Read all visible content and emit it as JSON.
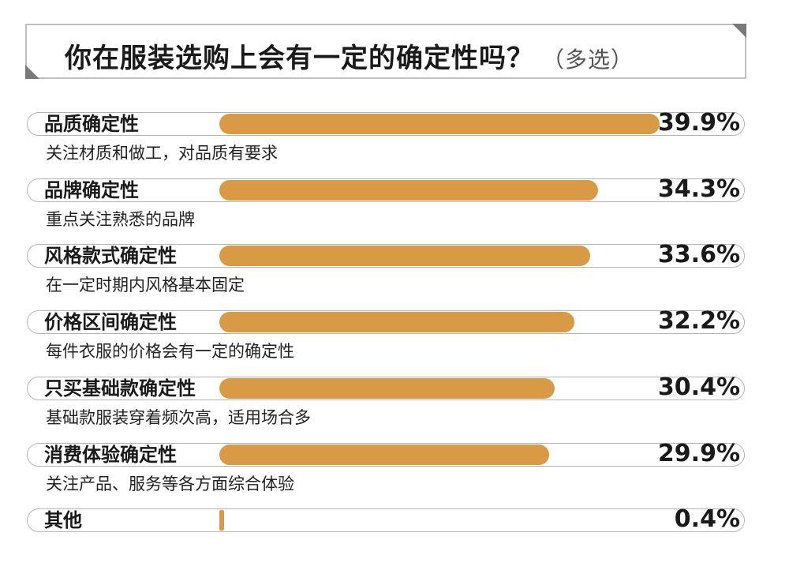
{
  "header": {
    "title": "你在服装选购上会有一定的确定性吗？",
    "note": "（多选）"
  },
  "chart_data": {
    "type": "bar",
    "orientation": "horizontal",
    "title": "你在服装选购上会有一定的确定性吗？（多选）",
    "value_unit": "%",
    "xlim": [
      0,
      40
    ],
    "categories": [
      "品质确定性",
      "品牌确定性",
      "风格款式确定性",
      "价格区间确定性",
      "只买基础款确定性",
      "消费体验确定性",
      "其他"
    ],
    "descriptions": [
      "关注材质和做工，对品质有要求",
      "重点关注熟悉的品牌",
      "在一定时期内风格基本固定",
      "每件衣服的价格会有一定的确定性",
      "基础款服装穿着频次高，适用场合多",
      "关注产品、服务等各方面综合体验",
      ""
    ],
    "values": [
      39.9,
      34.3,
      33.6,
      32.2,
      30.4,
      29.9,
      0.4
    ],
    "value_labels": [
      "39.9%",
      "34.3%",
      "33.6%",
      "32.2%",
      "30.4%",
      "29.9%",
      "0.4%"
    ],
    "bar_color": "#d99a45"
  }
}
